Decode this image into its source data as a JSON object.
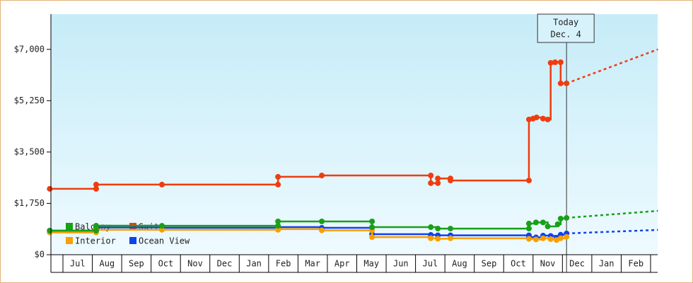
{
  "chart_data": {
    "type": "line",
    "step": true,
    "xlim": [
      -0.45,
      20.25
    ],
    "ylim": [
      0,
      8200
    ],
    "xticks": [
      {
        "value": 0.5,
        "label": "Jul"
      },
      {
        "value": 1.5,
        "label": "Aug"
      },
      {
        "value": 2.5,
        "label": "Sep"
      },
      {
        "value": 3.5,
        "label": "Oct"
      },
      {
        "value": 4.5,
        "label": "Nov"
      },
      {
        "value": 5.5,
        "label": "Dec"
      },
      {
        "value": 6.5,
        "label": "Jan"
      },
      {
        "value": 7.5,
        "label": "Feb"
      },
      {
        "value": 8.5,
        "label": "Mar"
      },
      {
        "value": 9.5,
        "label": "Apr"
      },
      {
        "value": 10.5,
        "label": "May"
      },
      {
        "value": 11.5,
        "label": "Jun"
      },
      {
        "value": 12.5,
        "label": "Jul"
      },
      {
        "value": 13.5,
        "label": "Aug"
      },
      {
        "value": 14.5,
        "label": "Sep"
      },
      {
        "value": 15.5,
        "label": "Oct"
      },
      {
        "value": 16.5,
        "label": "Nov"
      },
      {
        "value": 17.5,
        "label": "Dec"
      },
      {
        "value": 18.5,
        "label": "Jan"
      },
      {
        "value": 19.5,
        "label": "Feb"
      }
    ],
    "yticks": [
      {
        "value": 0,
        "label": "$0"
      },
      {
        "value": 1750,
        "label": "$1,750"
      },
      {
        "value": 3500,
        "label": "$3,500"
      },
      {
        "value": 5250,
        "label": "$5,250"
      },
      {
        "value": 7000,
        "label": "$7,000"
      }
    ],
    "legend": "lower left",
    "annotation": {
      "x": 17.14,
      "lines": [
        "Today",
        "Dec. 4"
      ]
    },
    "series": [
      {
        "name": "Balcony",
        "color": "#18a018",
        "x": [
          -0.45,
          1.13,
          1.13,
          3.37,
          7.32,
          7.32,
          8.81,
          10.52,
          10.52,
          12.52,
          12.76,
          13.19,
          15.86,
          15.86,
          16.1,
          16.34,
          16.5,
          16.84,
          16.94,
          17.14
        ],
        "values": [
          820,
          820,
          990,
          985,
          985,
          1135,
          1135,
          1135,
          940,
          940,
          890,
          890,
          890,
          1060,
          1100,
          1100,
          965,
          1040,
          1230,
          1255
        ],
        "forecast": {
          "x": [
            17.14,
            20.25
          ],
          "values": [
            1255,
            1495
          ]
        }
      },
      {
        "name": "Suite",
        "color": "#f03c10",
        "x": [
          -0.45,
          1.13,
          1.13,
          3.37,
          7.32,
          7.32,
          8.81,
          12.52,
          12.52,
          12.76,
          12.76,
          13.19,
          13.19,
          15.86,
          15.86,
          16.0,
          16.12,
          16.34,
          16.5,
          16.6,
          16.75,
          16.94,
          16.94,
          17.14
        ],
        "values": [
          2245,
          2245,
          2390,
          2390,
          2390,
          2655,
          2700,
          2700,
          2440,
          2440,
          2600,
          2600,
          2530,
          2530,
          4610,
          4640,
          4680,
          4640,
          4610,
          6540,
          6560,
          6560,
          5840,
          5840
        ],
        "forecast": {
          "x": [
            17.14,
            20.25
          ],
          "values": [
            5840,
            7000
          ]
        }
      },
      {
        "name": "Interior",
        "color": "#f8a000",
        "x": [
          -0.45,
          1.13,
          1.13,
          3.37,
          7.32,
          7.32,
          8.81,
          10.52,
          10.52,
          12.52,
          12.76,
          13.19,
          15.86,
          16.1,
          16.34,
          16.6,
          16.8,
          16.94,
          17.14
        ],
        "values": [
          760,
          760,
          850,
          850,
          850,
          870,
          830,
          830,
          600,
          560,
          545,
          560,
          540,
          520,
          560,
          530,
          500,
          560,
          610
        ]
      },
      {
        "name": "Ocean View",
        "color": "#1040f0",
        "x": [
          -0.45,
          1.13,
          1.13,
          3.37,
          7.32,
          7.32,
          8.81,
          10.52,
          10.52,
          12.52,
          12.76,
          13.19,
          15.86,
          15.86,
          16.1,
          16.34,
          16.6,
          16.8,
          16.94,
          17.14
        ],
        "values": [
          820,
          820,
          930,
          920,
          920,
          940,
          915,
          915,
          700,
          675,
          660,
          660,
          660,
          600,
          590,
          650,
          640,
          580,
          680,
          725
        ],
        "forecast": {
          "x": [
            17.14,
            20.25
          ],
          "values": [
            725,
            845
          ]
        }
      }
    ]
  }
}
